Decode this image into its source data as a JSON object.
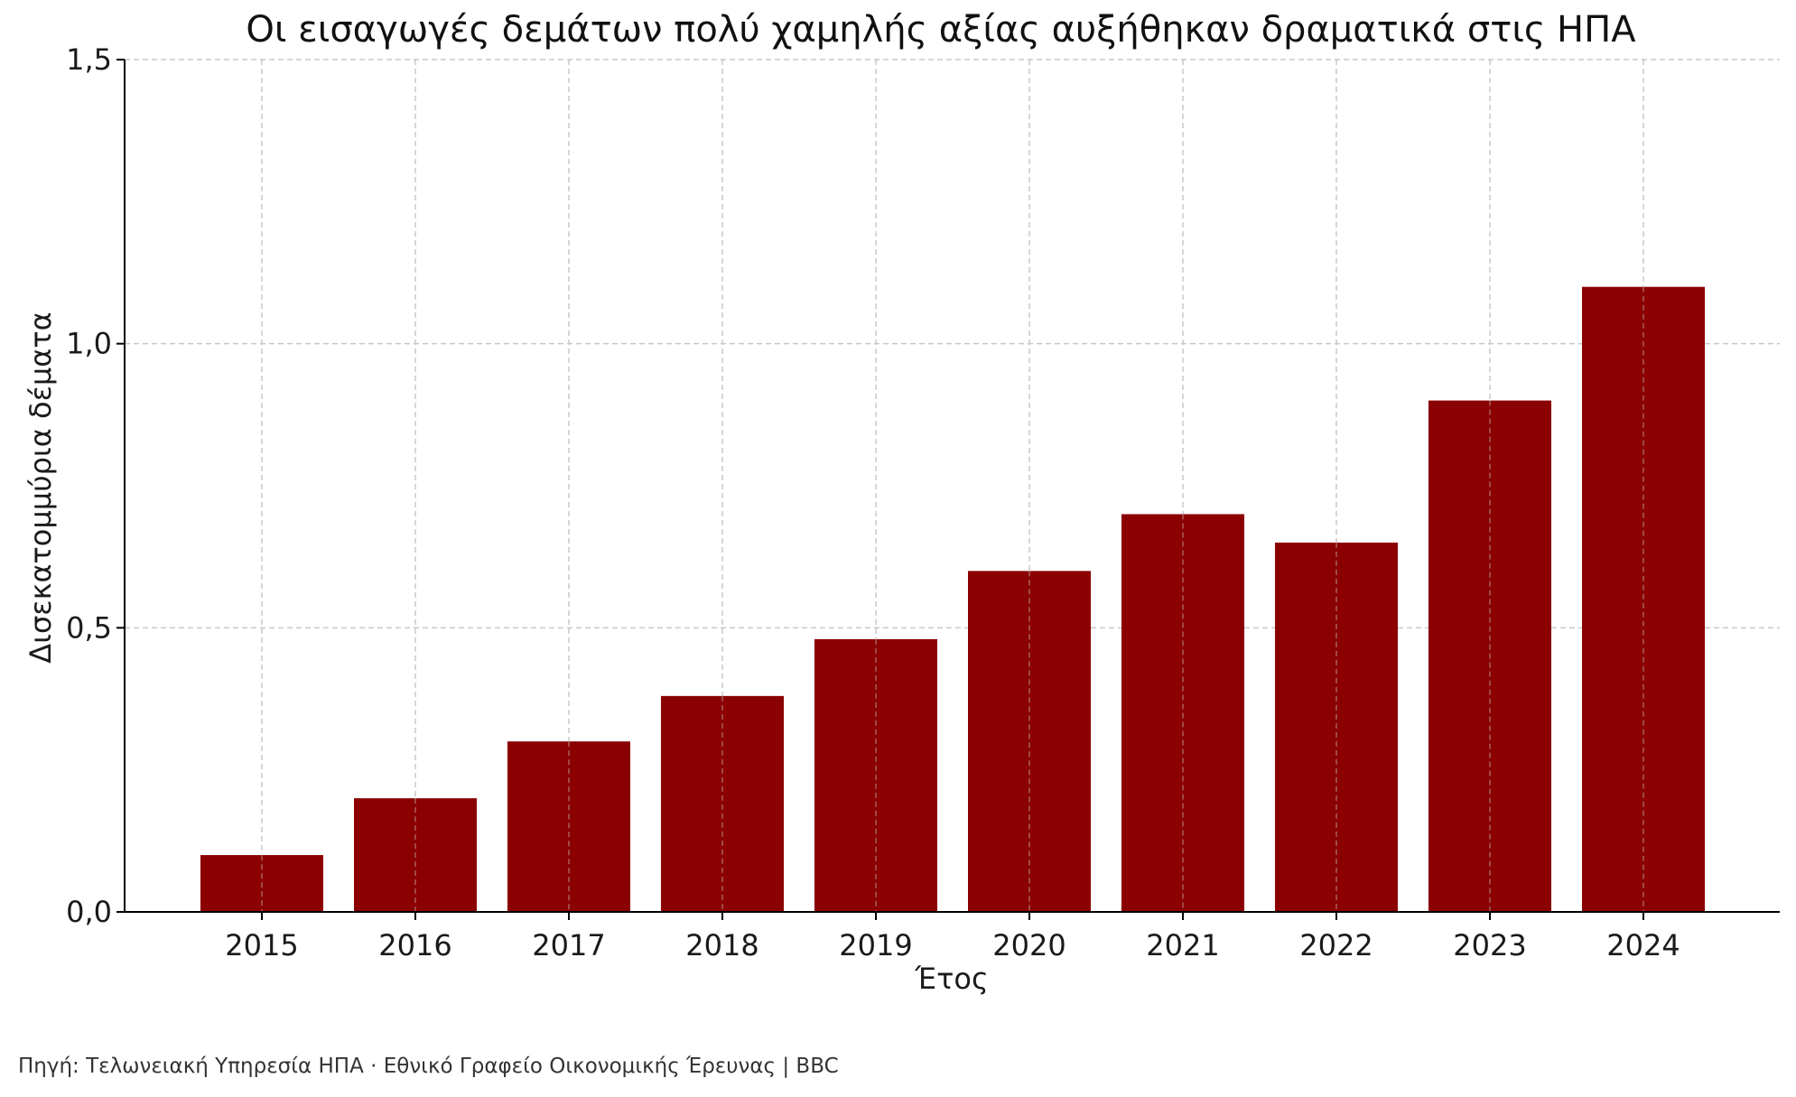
{
  "chart_data": {
    "type": "bar",
    "title": "Οι εισαγωγές δεμάτων πολύ χαμηλής αξίας αυξήθηκαν δραματικά στις ΗΠΑ",
    "xlabel": "Έτος",
    "ylabel": "Δισεκατομμύρια δέματα",
    "categories": [
      "2015",
      "2016",
      "2017",
      "2018",
      "2019",
      "2020",
      "2021",
      "2022",
      "2023",
      "2024"
    ],
    "values": [
      0.1,
      0.2,
      0.3,
      0.38,
      0.48,
      0.6,
      0.7,
      0.65,
      0.9,
      1.1
    ],
    "ylim": [
      0,
      1.5
    ],
    "yticks": [
      0,
      0.5,
      1.0,
      1.5
    ],
    "ytick_labels": [
      "0,0",
      "0,5",
      "1,0",
      "1,5"
    ],
    "grid": true,
    "bar_color": "#8b0000"
  },
  "source": "Πηγή: Τελωνειακή Υπηρεσία ΗΠΑ · Εθνικό Γραφείο Οικονομικής Έρευνας | BBC"
}
